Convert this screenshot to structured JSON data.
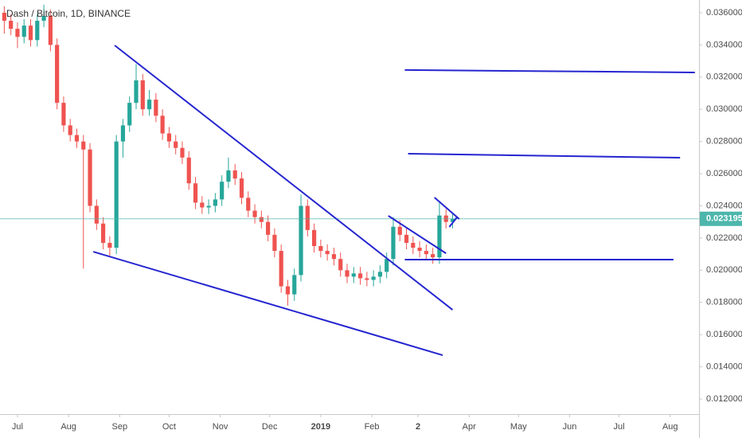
{
  "chart_data": {
    "type": "candlestick",
    "title": "Dash / Bitcoin, 1D, BINANCE",
    "up_color": "#26a69a",
    "down_color": "#ef5350",
    "line_color": "#2525d0",
    "last_price_color": "#4db6ac",
    "grid": false,
    "xlim": [
      -10.6,
      413.5
    ],
    "ylim": [
      0.01106,
      0.03679
    ],
    "xticks": [
      {
        "value": 0,
        "label": "Jul"
      },
      {
        "value": 31,
        "label": "Aug"
      },
      {
        "value": 62,
        "label": "Sep"
      },
      {
        "value": 92,
        "label": "Oct"
      },
      {
        "value": 123,
        "label": "Nov"
      },
      {
        "value": 153,
        "label": "Dec"
      },
      {
        "value": 184,
        "label": "2019"
      },
      {
        "value": 215,
        "label": "Feb"
      },
      {
        "value": 243,
        "label": "2"
      },
      {
        "value": 274,
        "label": "Apr"
      },
      {
        "value": 304,
        "label": "May"
      },
      {
        "value": 335,
        "label": "Jun"
      },
      {
        "value": 365,
        "label": "Jul"
      },
      {
        "value": 396,
        "label": "Aug"
      }
    ],
    "yticks": [
      {
        "value": 0.012,
        "label": "0.012000"
      },
      {
        "value": 0.014,
        "label": "0.014000"
      },
      {
        "value": 0.016,
        "label": "0.016000"
      },
      {
        "value": 0.018,
        "label": "0.018000"
      },
      {
        "value": 0.02,
        "label": "0.020000"
      },
      {
        "value": 0.022,
        "label": "0.022000"
      },
      {
        "value": 0.024,
        "label": "0.024000"
      },
      {
        "value": 0.026,
        "label": "0.026000"
      },
      {
        "value": 0.028,
        "label": "0.028000"
      },
      {
        "value": 0.03,
        "label": "0.030000"
      },
      {
        "value": 0.032,
        "label": "0.032000"
      },
      {
        "value": 0.034,
        "label": "0.034000"
      },
      {
        "value": 0.036,
        "label": "0.036000"
      }
    ],
    "last_price": 0.023195,
    "x": [
      -8,
      -4,
      0,
      4,
      8,
      12,
      16,
      20,
      24,
      28,
      32,
      36,
      40,
      44,
      48,
      52,
      56,
      60,
      64,
      68,
      72,
      76,
      80,
      84,
      88,
      92,
      96,
      100,
      104,
      108,
      112,
      116,
      120,
      124,
      128,
      132,
      136,
      140,
      144,
      148,
      152,
      156,
      160,
      164,
      168,
      172,
      176,
      180,
      184,
      188,
      192,
      196,
      200,
      204,
      208,
      212,
      216,
      220,
      224,
      228,
      232,
      236,
      240,
      244,
      248,
      252,
      256,
      260,
      264
    ],
    "open": [
      0.036,
      0.0355,
      0.035,
      0.0345,
      0.0352,
      0.0343,
      0.0355,
      0.0358,
      0.034,
      0.0304,
      0.029,
      0.0284,
      0.028,
      0.0275,
      0.024,
      0.0229,
      0.0217,
      0.0214,
      0.028,
      0.029,
      0.0304,
      0.0318,
      0.03,
      0.0306,
      0.0296,
      0.0285,
      0.028,
      0.0276,
      0.027,
      0.0254,
      0.0242,
      0.0239,
      0.024,
      0.0244,
      0.0255,
      0.0262,
      0.0257,
      0.0245,
      0.0237,
      0.0233,
      0.023,
      0.0222,
      0.0212,
      0.019,
      0.0185,
      0.0197,
      0.024,
      0.0225,
      0.0215,
      0.0212,
      0.021,
      0.0207,
      0.02,
      0.0196,
      0.0198,
      0.0195,
      0.0194,
      0.0196,
      0.0199,
      0.0207,
      0.0227,
      0.0222,
      0.0217,
      0.0214,
      0.0212,
      0.021,
      0.0208,
      0.0234,
      0.023
    ],
    "high": [
      0.0364,
      0.0359,
      0.0354,
      0.0356,
      0.0356,
      0.0359,
      0.0365,
      0.0362,
      0.0344,
      0.0308,
      0.0294,
      0.0288,
      0.0284,
      0.0279,
      0.0244,
      0.0233,
      0.0221,
      0.0284,
      0.0294,
      0.0308,
      0.0328,
      0.0322,
      0.0312,
      0.031,
      0.03,
      0.0289,
      0.0284,
      0.028,
      0.0274,
      0.0258,
      0.0246,
      0.0244,
      0.0248,
      0.0259,
      0.027,
      0.0266,
      0.0261,
      0.0249,
      0.0241,
      0.0237,
      0.0234,
      0.0226,
      0.0216,
      0.0194,
      0.0201,
      0.0247,
      0.0244,
      0.0229,
      0.0219,
      0.0216,
      0.0214,
      0.0211,
      0.0204,
      0.0202,
      0.0202,
      0.0199,
      0.02,
      0.0203,
      0.0211,
      0.0233,
      0.0231,
      0.0226,
      0.0221,
      0.0218,
      0.0216,
      0.0214,
      0.0242,
      0.0238,
      0.0236
    ],
    "low": [
      0.0347,
      0.0346,
      0.0338,
      0.0341,
      0.0339,
      0.0339,
      0.0351,
      0.0336,
      0.03,
      0.0286,
      0.028,
      0.0276,
      0.0201,
      0.0236,
      0.0225,
      0.0213,
      0.0209,
      0.021,
      0.027,
      0.0286,
      0.03,
      0.0296,
      0.0296,
      0.0292,
      0.0281,
      0.0276,
      0.0272,
      0.0266,
      0.025,
      0.0238,
      0.0235,
      0.0235,
      0.0236,
      0.024,
      0.0251,
      0.0253,
      0.0241,
      0.0233,
      0.0229,
      0.0226,
      0.0218,
      0.0208,
      0.0186,
      0.0178,
      0.0181,
      0.0193,
      0.0221,
      0.0211,
      0.0208,
      0.0206,
      0.0203,
      0.0196,
      0.0192,
      0.0192,
      0.0191,
      0.019,
      0.019,
      0.0192,
      0.0195,
      0.0203,
      0.0218,
      0.0213,
      0.021,
      0.0208,
      0.0206,
      0.0204,
      0.0204,
      0.0226,
      0.0226
    ],
    "close": [
      0.0355,
      0.035,
      0.0345,
      0.0352,
      0.0343,
      0.0355,
      0.0358,
      0.034,
      0.0304,
      0.029,
      0.0284,
      0.028,
      0.0275,
      0.024,
      0.0229,
      0.0217,
      0.0214,
      0.028,
      0.029,
      0.0304,
      0.0318,
      0.03,
      0.0306,
      0.0296,
      0.0285,
      0.028,
      0.0276,
      0.027,
      0.0254,
      0.0242,
      0.0239,
      0.024,
      0.0244,
      0.0255,
      0.0262,
      0.0257,
      0.0245,
      0.0237,
      0.0233,
      0.023,
      0.0222,
      0.0212,
      0.019,
      0.0185,
      0.0197,
      0.024,
      0.0225,
      0.0215,
      0.0212,
      0.021,
      0.0207,
      0.02,
      0.0196,
      0.0198,
      0.0195,
      0.0194,
      0.0196,
      0.0199,
      0.0207,
      0.0227,
      0.0222,
      0.0217,
      0.0214,
      0.0212,
      0.021,
      0.0208,
      0.0234,
      0.023,
      0.023195
    ],
    "trend_lines": [
      {
        "x": [
          59,
          264
        ],
        "y": [
          0.03397,
          0.01754
        ]
      },
      {
        "x": [
          46,
          258
        ],
        "y": [
          0.02115,
          0.01472
        ]
      },
      {
        "x": [
          235,
          411
        ],
        "y": [
          0.03244,
          0.03229
        ]
      },
      {
        "x": [
          237,
          402
        ],
        "y": [
          0.02724,
          0.02699
        ]
      },
      {
        "x": [
          235,
          398
        ],
        "y": [
          0.02066,
          0.02066
        ]
      },
      {
        "x": [
          225,
          260
        ],
        "y": [
          0.02338,
          0.02105
        ]
      },
      {
        "x": [
          253,
          268
        ],
        "y": [
          0.02452,
          0.02318
        ]
      },
      {
        "x": [
          262,
          267
        ],
        "y": [
          0.02269,
          0.02333
        ]
      }
    ]
  }
}
